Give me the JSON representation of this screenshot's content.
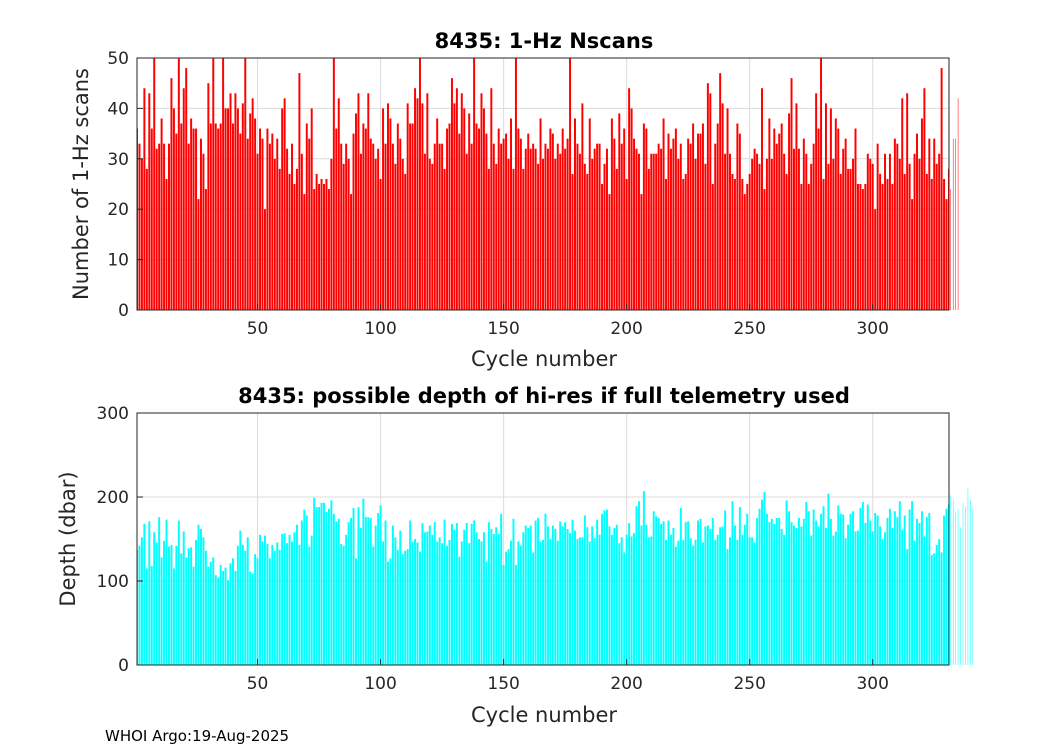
{
  "footer": "WHOI Argo:19-Aug-2025",
  "chart_data": [
    {
      "type": "bar",
      "title": "8435: 1-Hz Nscans",
      "xlabel": "Cycle number",
      "ylabel": "Number of 1-Hz scans",
      "xlim": [
        1,
        331
      ],
      "ylim": [
        0,
        50
      ],
      "xticks": [
        50,
        100,
        150,
        200,
        250,
        300
      ],
      "yticks": [
        0,
        10,
        20,
        30,
        40,
        50
      ],
      "grid": true,
      "color": "#ff0000",
      "x": "cycles 1-331",
      "values": [
        36,
        33,
        30,
        44,
        28,
        43,
        36,
        50,
        32,
        33,
        38,
        33,
        26,
        33,
        46,
        40,
        35,
        50,
        37,
        44,
        48,
        33,
        38,
        36,
        36,
        22,
        34,
        31,
        24,
        45,
        37,
        50,
        37,
        36,
        37,
        50,
        40,
        40,
        43,
        37,
        43,
        40,
        35,
        41,
        50,
        34,
        39,
        42,
        38,
        31,
        36,
        34,
        20,
        36,
        33,
        35,
        30,
        34,
        28,
        40,
        42,
        32,
        27,
        33,
        25,
        28,
        47,
        31,
        23,
        37,
        34,
        40,
        24,
        27,
        25,
        26,
        25,
        26,
        24,
        30,
        50,
        36,
        42,
        33,
        29,
        33,
        30,
        23,
        35,
        39,
        43,
        31,
        37,
        36,
        43,
        34,
        33,
        30,
        32,
        26,
        40,
        33,
        41,
        38,
        33,
        29,
        37,
        34,
        30,
        27,
        41,
        37,
        37,
        44,
        42,
        50,
        41,
        31,
        43,
        30,
        29,
        33,
        38,
        33,
        33,
        28,
        36,
        37,
        46,
        41,
        44,
        35,
        43,
        40,
        31,
        39,
        33,
        50,
        37,
        36,
        43,
        40,
        35,
        28,
        44,
        33,
        29,
        36,
        33,
        34,
        35,
        30,
        38,
        28,
        50,
        36,
        34,
        28,
        32,
        35,
        32,
        33,
        32,
        29,
        38,
        30,
        33,
        32,
        36,
        35,
        30,
        33,
        31,
        36,
        32,
        34,
        50,
        27,
        38,
        33,
        31,
        41,
        29,
        27,
        38,
        30,
        32,
        33,
        33,
        25,
        29,
        32,
        23,
        38,
        34,
        28,
        39,
        33,
        36,
        26,
        44,
        40,
        34,
        32,
        31,
        23,
        37,
        36,
        28,
        31,
        31,
        31,
        33,
        32,
        38,
        26,
        35,
        32,
        34,
        36,
        30,
        33,
        26,
        27,
        34,
        33,
        37,
        30,
        35,
        35,
        37,
        29,
        45,
        43,
        25,
        33,
        37,
        47,
        41,
        31,
        40,
        31,
        27,
        26,
        37,
        35,
        26,
        23,
        25,
        27,
        30,
        32,
        31,
        29,
        44,
        24,
        30,
        38,
        30,
        36,
        33,
        35,
        37,
        31,
        27,
        39,
        46,
        32,
        41,
        32,
        25,
        34,
        31,
        25,
        29,
        33,
        43,
        36,
        50,
        26,
        41,
        29,
        40,
        30,
        38,
        36,
        27,
        32,
        34,
        28,
        28,
        30,
        36,
        25,
        25,
        24,
        25,
        31,
        30,
        29,
        20,
        33,
        27,
        25,
        31,
        26,
        31,
        25,
        34,
        33,
        30,
        42,
        27,
        43,
        29,
        22,
        31,
        35,
        30,
        38,
        44,
        27,
        34,
        26,
        34,
        29,
        31,
        48,
        26,
        22,
        28,
        24,
        34,
        34,
        42
      ]
    },
    {
      "type": "bar",
      "title": "8435: possible depth of hi-res if full telemetry used",
      "xlabel": "Cycle number",
      "ylabel": "Depth (dbar)",
      "xlim": [
        1,
        331
      ],
      "ylim": [
        0,
        300
      ],
      "xticks": [
        50,
        100,
        150,
        200,
        250,
        300
      ],
      "yticks": [
        0,
        100,
        200,
        300
      ],
      "grid": true,
      "color": "#00ffff",
      "x": "cycles 1-331",
      "values": [
        137,
        142,
        152,
        168,
        115,
        171,
        118,
        158,
        146,
        176,
        128,
        148,
        173,
        141,
        143,
        115,
        142,
        172,
        133,
        159,
        128,
        139,
        140,
        117,
        149,
        167,
        162,
        152,
        136,
        117,
        123,
        128,
        107,
        104,
        119,
        112,
        116,
        101,
        121,
        127,
        112,
        142,
        160,
        143,
        136,
        152,
        111,
        109,
        132,
        127,
        155,
        147,
        154,
        144,
        127,
        143,
        136,
        146,
        137,
        156,
        157,
        145,
        155,
        147,
        158,
        167,
        143,
        172,
        185,
        178,
        141,
        154,
        199,
        188,
        188,
        193,
        193,
        182,
        186,
        196,
        180,
        171,
        174,
        144,
        142,
        155,
        170,
        175,
        187,
        127,
        188,
        163,
        198,
        176,
        176,
        175,
        141,
        166,
        181,
        190,
        147,
        172,
        123,
        127,
        166,
        152,
        137,
        160,
        132,
        136,
        138,
        172,
        147,
        150,
        146,
        135,
        169,
        158,
        159,
        166,
        155,
        170,
        147,
        152,
        145,
        173,
        142,
        149,
        168,
        161,
        169,
        129,
        147,
        161,
        169,
        145,
        168,
        172,
        158,
        150,
        147,
        158,
        123,
        170,
        162,
        156,
        164,
        156,
        180,
        119,
        135,
        138,
        148,
        174,
        119,
        147,
        142,
        158,
        166,
        163,
        166,
        134,
        172,
        175,
        147,
        149,
        180,
        165,
        150,
        166,
        162,
        148,
        171,
        165,
        170,
        162,
        157,
        173,
        160,
        150,
        152,
        152,
        178,
        164,
        147,
        165,
        151,
        173,
        155,
        180,
        184,
        185,
        165,
        155,
        163,
        167,
        145,
        152,
        134,
        155,
        169,
        153,
        157,
        189,
        195,
        166,
        207,
        167,
        152,
        153,
        183,
        177,
        175,
        168,
        171,
        149,
        172,
        155,
        163,
        141,
        148,
        187,
        149,
        170,
        171,
        151,
        142,
        149,
        172,
        174,
        146,
        165,
        166,
        162,
        175,
        149,
        155,
        164,
        165,
        184,
        138,
        152,
        195,
        166,
        149,
        188,
        155,
        167,
        180,
        152,
        152,
        146,
        175,
        186,
        197,
        206,
        180,
        170,
        174,
        168,
        175,
        175,
        162,
        155,
        196,
        183,
        170,
        166,
        163,
        175,
        165,
        174,
        194,
        183,
        154,
        185,
        172,
        165,
        180,
        189,
        163,
        204,
        174,
        154,
        159,
        190,
        180,
        179,
        151,
        167,
        180,
        183,
        159,
        160,
        187,
        194,
        169,
        191,
        172,
        159,
        181,
        178,
        165,
        150,
        158,
        175,
        186,
        163,
        183,
        176,
        195,
        161,
        178,
        138,
        185,
        195,
        148,
        174,
        169,
        183,
        153,
        176,
        181,
        131,
        133,
        143,
        150,
        134,
        178,
        186,
        192,
        202,
        197,
        183,
        186,
        164,
        193,
        188,
        210,
        197,
        185
      ]
    }
  ]
}
